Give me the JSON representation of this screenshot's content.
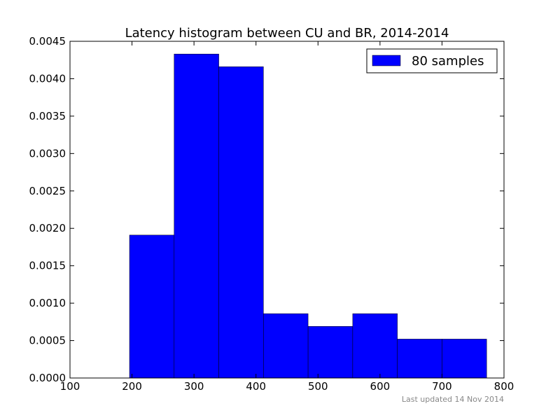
{
  "chart_data": {
    "type": "bar",
    "title": "Latency histogram between CU and BR, 2014-2014",
    "xlabel": "",
    "ylabel": "",
    "xlim": [
      100,
      800
    ],
    "ylim": [
      0,
      0.0045
    ],
    "bin_edges": [
      196,
      268,
      340,
      412,
      484,
      556,
      628,
      700,
      772
    ],
    "values": [
      0.00191,
      0.00433,
      0.00416,
      0.00086,
      0.00069,
      0.00086,
      0.00052,
      0.00052
    ],
    "x_ticks": [
      "100",
      "200",
      "300",
      "400",
      "500",
      "600",
      "700",
      "800"
    ],
    "y_ticks": [
      "0.0000",
      "0.0005",
      "0.0010",
      "0.0015",
      "0.0020",
      "0.0025",
      "0.0030",
      "0.0035",
      "0.0040",
      "0.0045"
    ],
    "grid": false,
    "legend_position": "top-right",
    "series": [
      {
        "name": "80 samples",
        "color": "#0000ff"
      }
    ]
  },
  "footer": {
    "updated": "Last updated 14 Nov 2014"
  }
}
